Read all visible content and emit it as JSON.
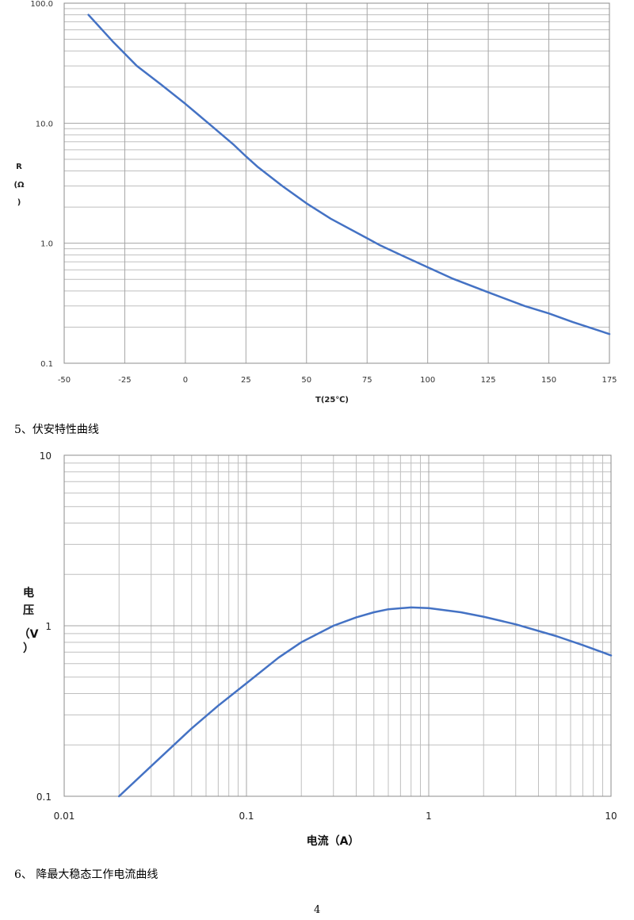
{
  "chart_data": [
    {
      "type": "line",
      "title": "",
      "xlabel": "T(25℃)",
      "ylabel_lines": [
        "R",
        "(Ω",
        ")"
      ],
      "xscale": "linear",
      "yscale": "log",
      "xlim": [
        -50,
        175
      ],
      "ylim": [
        0.1,
        100
      ],
      "x_ticks": [
        "-50",
        "-25",
        "0",
        "25",
        "50",
        "75",
        "100",
        "125",
        "150",
        "175"
      ],
      "y_ticks": [
        "100.0",
        "10.0",
        "1.0",
        "0.1"
      ],
      "grid": true,
      "series_color": "#4472c4",
      "series": [
        {
          "x": [
            -40,
            -30,
            -25,
            -20,
            -10,
            0,
            10,
            20,
            25,
            30,
            40,
            50,
            60,
            75,
            80,
            90,
            100,
            110,
            125,
            140,
            150,
            160,
            175
          ],
          "y": [
            80,
            48,
            38,
            30,
            21,
            14.5,
            9.8,
            6.6,
            5.3,
            4.3,
            3.0,
            2.15,
            1.6,
            1.1,
            0.97,
            0.78,
            0.63,
            0.51,
            0.39,
            0.3,
            0.26,
            0.22,
            0.175
          ]
        }
      ]
    },
    {
      "type": "line",
      "title": "",
      "xlabel": "电流（A）",
      "ylabel_lines": [
        "电",
        "压",
        "（V",
        "）"
      ],
      "xscale": "log",
      "yscale": "log",
      "xlim": [
        0.01,
        10
      ],
      "ylim": [
        0.1,
        10
      ],
      "x_ticks": [
        "0.01",
        "0.1",
        "1",
        "10"
      ],
      "y_ticks": [
        "10",
        "1",
        "0.1"
      ],
      "grid": true,
      "series_color": "#4472c4",
      "series": [
        {
          "x": [
            0.02,
            0.03,
            0.05,
            0.07,
            0.1,
            0.15,
            0.2,
            0.3,
            0.4,
            0.5,
            0.6,
            0.8,
            1.0,
            1.5,
            2,
            3,
            5,
            7,
            10
          ],
          "y": [
            0.1,
            0.15,
            0.25,
            0.34,
            0.46,
            0.65,
            0.8,
            1.0,
            1.12,
            1.2,
            1.25,
            1.28,
            1.27,
            1.2,
            1.13,
            1.02,
            0.87,
            0.77,
            0.67
          ]
        }
      ]
    }
  ],
  "captions": {
    "caption_5": "5、伏安特性曲线",
    "caption_6": "6、 降最大稳态工作电流曲线"
  },
  "page_number": "4"
}
